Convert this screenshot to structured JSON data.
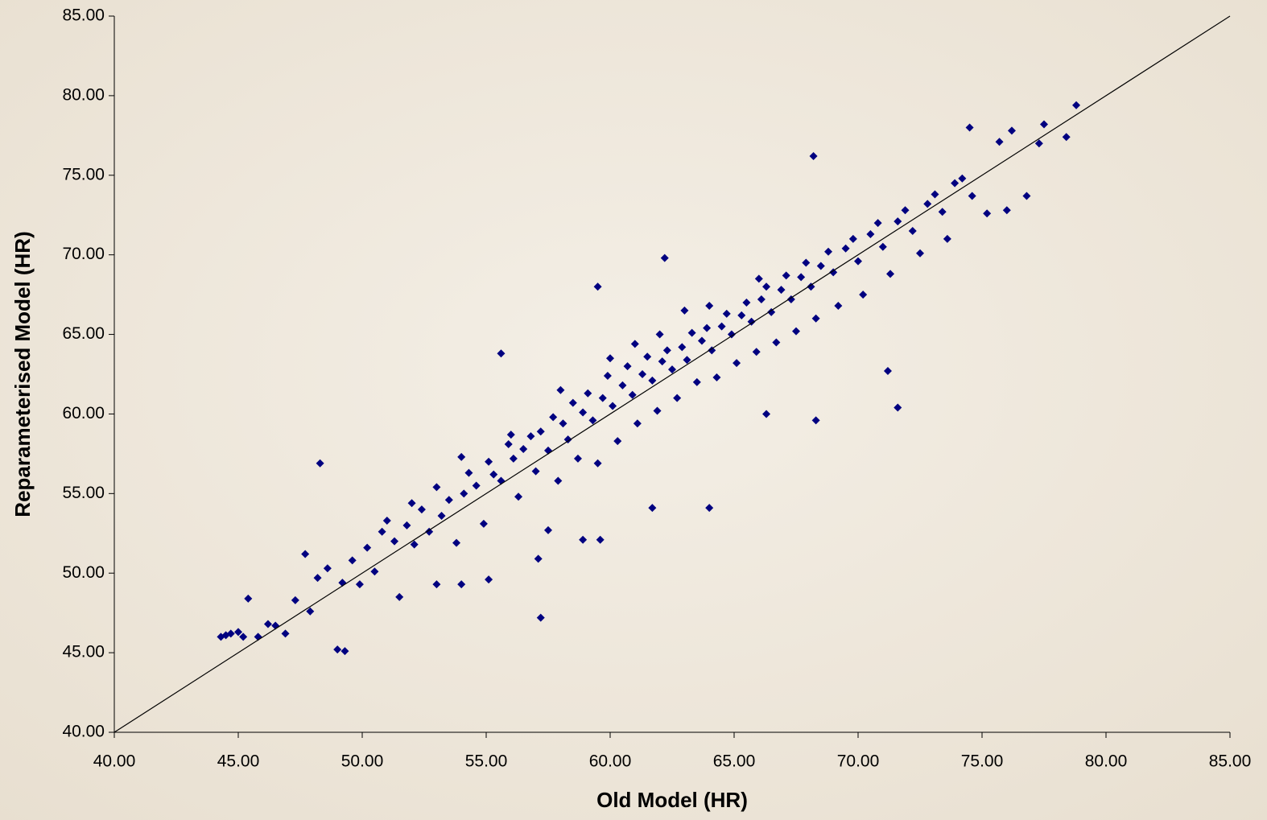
{
  "chart_data": {
    "type": "scatter",
    "x_label": "Old Model (HR)",
    "y_label": "Reparameterised Model (HR)",
    "xlim": [
      40,
      85
    ],
    "ylim": [
      40,
      85
    ],
    "xticks": [
      {
        "value": 40,
        "label": "40.00"
      },
      {
        "value": 45,
        "label": "45.00"
      },
      {
        "value": 50,
        "label": "50.00"
      },
      {
        "value": 55,
        "label": "55.00"
      },
      {
        "value": 60,
        "label": "60.00"
      },
      {
        "value": 65,
        "label": "65.00"
      },
      {
        "value": 70,
        "label": "70.00"
      },
      {
        "value": 75,
        "label": "75.00"
      },
      {
        "value": 80,
        "label": "80.00"
      },
      {
        "value": 85,
        "label": "85.00"
      }
    ],
    "yticks": [
      {
        "value": 40,
        "label": "40.00"
      },
      {
        "value": 45,
        "label": "45.00"
      },
      {
        "value": 50,
        "label": "50.00"
      },
      {
        "value": 55,
        "label": "55.00"
      },
      {
        "value": 60,
        "label": "60.00"
      },
      {
        "value": 65,
        "label": "65.00"
      },
      {
        "value": 70,
        "label": "70.00"
      },
      {
        "value": 75,
        "label": "75.00"
      },
      {
        "value": 80,
        "label": "80.00"
      },
      {
        "value": 85,
        "label": "85.00"
      }
    ],
    "grid": false,
    "reference_line": true,
    "color": "#000080",
    "x": [
      44.5,
      45.0,
      45.8,
      46.2,
      46.9,
      47.3,
      47.9,
      48.2,
      48.6,
      49.2,
      49.6,
      49.9,
      50.2,
      50.5,
      50.8,
      51.0,
      51.3,
      51.5,
      51.8,
      52.1,
      52.4,
      52.7,
      53.0,
      53.2,
      53.5,
      53.8,
      54.1,
      54.3,
      54.6,
      54.9,
      55.1,
      55.3,
      55.6,
      55.9,
      56.1,
      56.3,
      56.5,
      56.8,
      57.0,
      57.2,
      57.5,
      57.7,
      57.9,
      58.1,
      58.3,
      58.5,
      58.7,
      58.9,
      59.1,
      59.3,
      59.5,
      59.7,
      59.9,
      60.1,
      60.3,
      60.5,
      60.7,
      60.9,
      61.1,
      61.3,
      61.5,
      61.7,
      61.9,
      62.1,
      62.3,
      62.5,
      62.7,
      62.9,
      63.1,
      63.3,
      63.5,
      63.7,
      63.9,
      64.1,
      64.3,
      64.5,
      64.7,
      64.9,
      65.1,
      65.3,
      65.5,
      65.7,
      65.9,
      66.1,
      66.3,
      66.5,
      66.7,
      66.9,
      67.1,
      67.3,
      67.5,
      67.7,
      67.9,
      68.1,
      68.3,
      68.5,
      68.8,
      69.0,
      69.2,
      69.5,
      69.8,
      70.0,
      70.2,
      70.5,
      70.8,
      71.0,
      71.3,
      71.6,
      71.9,
      72.2,
      72.5,
      72.8,
      73.1,
      73.4,
      73.6,
      73.9,
      74.2,
      74.6,
      75.2,
      76.0,
      76.8,
      58.0,
      60.0,
      62.0,
      64.0,
      66.0,
      56.0,
      54.0,
      52.0,
      63.0,
      61.0,
      48.3,
      55.6,
      59.5,
      62.2,
      68.2,
      74.5,
      76.2,
      78.8,
      77.5,
      78.4,
      57.2,
      49.0,
      49.3,
      71.6,
      71.2,
      66.3,
      68.3,
      64.0,
      61.7,
      57.5,
      59.6,
      58.9,
      53.0,
      54.0,
      55.1,
      47.7,
      44.3,
      44.7,
      45.2,
      45.4,
      46.5,
      57.1,
      75.7,
      77.3
    ],
    "values": [
      46.1,
      46.3,
      46.0,
      46.8,
      46.2,
      48.3,
      47.6,
      49.7,
      50.3,
      49.4,
      50.8,
      49.3,
      51.6,
      50.1,
      52.6,
      53.3,
      52.0,
      48.5,
      53.0,
      51.8,
      54.0,
      52.6,
      55.4,
      53.6,
      54.6,
      51.9,
      55.0,
      56.3,
      55.5,
      53.1,
      57.0,
      56.2,
      55.8,
      58.1,
      57.2,
      54.8,
      57.8,
      58.6,
      56.4,
      58.9,
      57.7,
      59.8,
      55.8,
      59.4,
      58.4,
      60.7,
      57.2,
      60.1,
      61.3,
      59.6,
      56.9,
      61.0,
      62.4,
      60.5,
      58.3,
      61.8,
      63.0,
      61.2,
      59.4,
      62.5,
      63.6,
      62.1,
      60.2,
      63.3,
      64.0,
      62.8,
      61.0,
      64.2,
      63.4,
      65.1,
      62.0,
      64.6,
      65.4,
      64.0,
      62.3,
      65.5,
      66.3,
      65.0,
      63.2,
      66.2,
      67.0,
      65.8,
      63.9,
      67.2,
      68.0,
      66.4,
      64.5,
      67.8,
      68.7,
      67.2,
      65.2,
      68.6,
      69.5,
      68.0,
      66.0,
      69.3,
      70.2,
      68.9,
      66.8,
      70.4,
      71.0,
      69.6,
      67.5,
      71.3,
      72.0,
      70.5,
      68.8,
      72.1,
      72.8,
      71.5,
      70.1,
      73.2,
      73.8,
      72.7,
      71.0,
      74.5,
      74.8,
      73.7,
      72.6,
      72.8,
      73.7,
      61.5,
      63.5,
      65.0,
      66.8,
      68.5,
      58.7,
      57.3,
      54.4,
      66.5,
      64.4,
      56.9,
      63.8,
      68.0,
      69.8,
      76.2,
      78.0,
      77.8,
      79.4,
      78.2,
      77.4,
      47.2,
      45.2,
      45.1,
      60.4,
      62.7,
      60.0,
      59.6,
      54.1,
      54.1,
      52.7,
      52.1,
      52.1,
      49.3,
      49.3,
      49.6,
      51.2,
      46.0,
      46.2,
      46.0,
      48.4,
      46.7,
      50.9,
      77.1,
      77.0
    ]
  }
}
